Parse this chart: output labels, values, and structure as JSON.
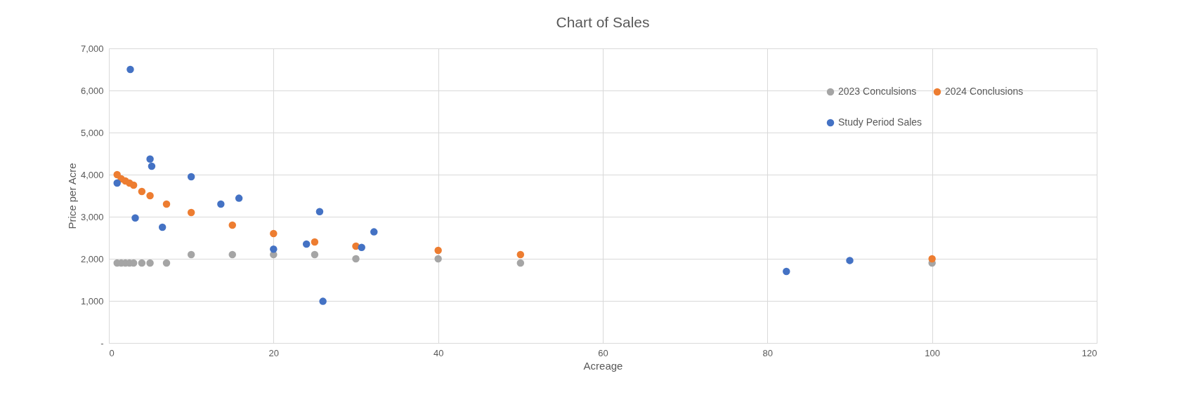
{
  "chart_data": {
    "type": "scatter",
    "title": "Chart of Sales",
    "xlabel": "Acreage",
    "ylabel": "Price per Acre",
    "series": [
      {
        "name": "2023 Conculsions",
        "color": "#a5a5a5",
        "x": [
          1,
          1.5,
          2,
          2.5,
          3,
          4,
          5,
          7,
          10,
          15,
          20,
          25,
          30,
          40,
          50,
          100
        ],
        "values": [
          1900,
          1900,
          1900,
          1900,
          1900,
          1900,
          1900,
          1900,
          2100,
          2100,
          2100,
          2100,
          2000,
          2000,
          1900,
          1900
        ]
      },
      {
        "name": "2024 Conclusions",
        "color": "#ed7d31",
        "x": [
          1,
          1.5,
          2,
          2.5,
          3,
          4,
          5,
          7,
          10,
          15,
          20,
          25,
          30,
          40,
          50,
          100
        ],
        "values": [
          4000,
          3900,
          3850,
          3800,
          3750,
          3600,
          3500,
          3300,
          3100,
          2800,
          2600,
          2400,
          2300,
          2200,
          2100,
          2000
        ]
      },
      {
        "name": "Study Period Sales",
        "color": "#4472c4",
        "x": [
          1,
          2.6,
          3.2,
          5,
          5.2,
          6.5,
          10,
          13.6,
          15.8,
          20,
          24,
          25.6,
          26,
          30.7,
          32.2,
          82.3,
          90
        ],
        "values": [
          3800,
          6500,
          2970,
          4370,
          4200,
          2750,
          3950,
          3300,
          3440,
          2230,
          2350,
          3120,
          990,
          2270,
          2640,
          1700,
          1960
        ]
      }
    ],
    "xlim": [
      0,
      120
    ],
    "xticks": [
      0,
      20,
      40,
      60,
      80,
      100,
      120
    ],
    "ylim": [
      0,
      7000
    ],
    "yticks": [
      {
        "value": 0,
        "label": "-"
      },
      {
        "value": 1000,
        "label": "1,000"
      },
      {
        "value": 2000,
        "label": "2,000"
      },
      {
        "value": 3000,
        "label": "3,000"
      },
      {
        "value": 4000,
        "label": "4,000"
      },
      {
        "value": 5000,
        "label": "5,000"
      },
      {
        "value": 6000,
        "label": "6,000"
      },
      {
        "value": 7000,
        "label": "7,000"
      }
    ],
    "grid": true,
    "legend": "top right",
    "marker": "circle"
  }
}
